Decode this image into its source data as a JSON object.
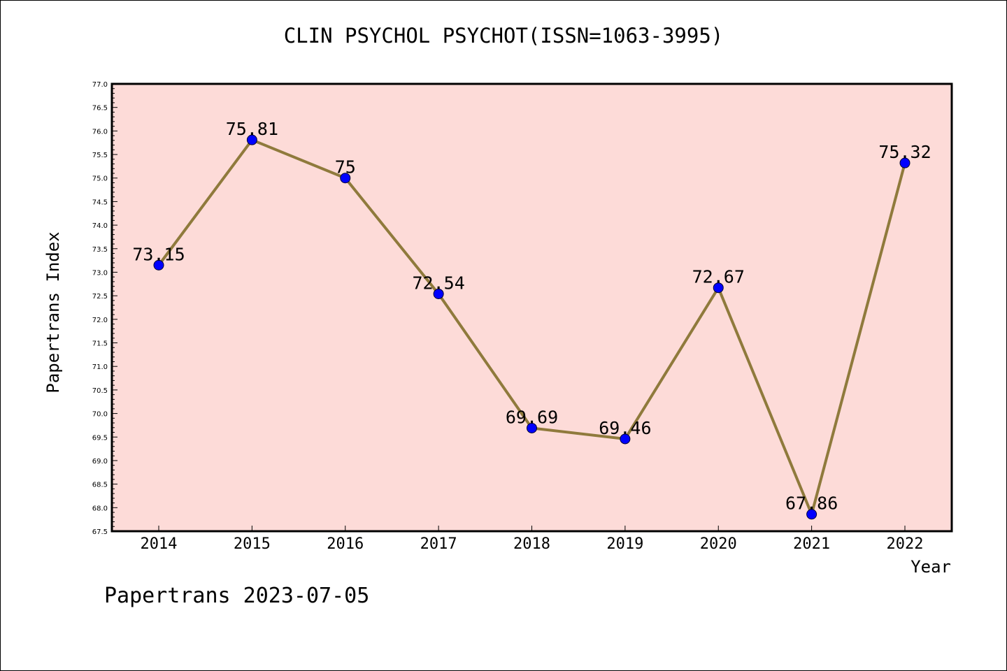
{
  "chart_data": {
    "type": "line",
    "title": "CLIN PSYCHOL PSYCHOT(ISSN=1063-3995)",
    "xlabel": "Year",
    "ylabel": "Papertrans Index",
    "x": [
      "2014",
      "2015",
      "2016",
      "2017",
      "2018",
      "2019",
      "2020",
      "2021",
      "2022"
    ],
    "values": [
      73.15,
      75.81,
      75,
      72.54,
      69.69,
      69.46,
      72.67,
      67.86,
      75.32
    ],
    "data_labels": [
      "73.15",
      "75.81",
      "75",
      "72.54",
      "69.69",
      "69.46",
      "72.67",
      "67.86",
      "75.32"
    ],
    "ylim": [
      67.5,
      77.0
    ],
    "ytick_step": 0.5,
    "grid": false,
    "line_color": "#8f7a3c",
    "marker_color": "#0000ff",
    "background_color": "#fddbd8"
  },
  "footer": "Papertrans 2023-07-05"
}
